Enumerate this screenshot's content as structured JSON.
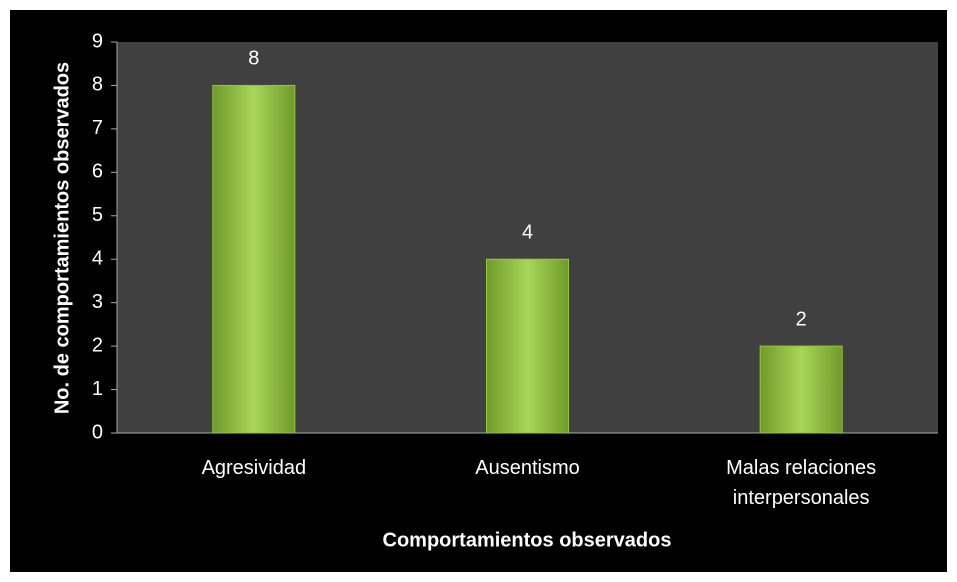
{
  "chart_data": {
    "type": "bar",
    "categories": [
      "Agresividad",
      "Ausentismo",
      "Malas relaciones interpersonales"
    ],
    "values": [
      8,
      4,
      2
    ],
    "color": "#92c83e",
    "xlabel": "Comportamientos observados",
    "ylabel": "No. de comportamientos observados",
    "ylim": [
      0,
      9
    ],
    "yticks": [
      0,
      1,
      2,
      3,
      4,
      5,
      6,
      7,
      8,
      9
    ],
    "grid": false
  }
}
